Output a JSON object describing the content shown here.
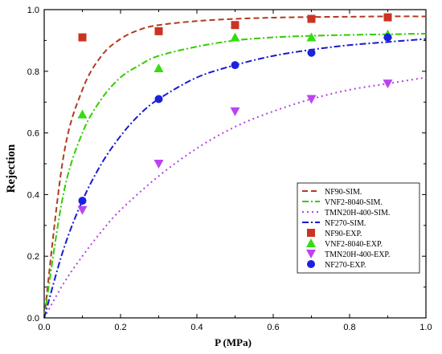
{
  "chart_data": {
    "type": "scatter",
    "xlabel": "P (MPa)",
    "ylabel": "Rejection",
    "xlim": [
      0,
      1.0
    ],
    "ylim": [
      0,
      1.0
    ],
    "x_ticks": [
      "0.0",
      "0.2",
      "0.4",
      "0.6",
      "0.8",
      "1.0"
    ],
    "y_ticks": [
      "0.0",
      "0.2",
      "0.4",
      "0.6",
      "0.8",
      "1.0"
    ],
    "grid": false,
    "legend_position": "bottom-right",
    "sim_series": [
      {
        "name": "NF90-SIM.",
        "color": "#b33a1f",
        "dash": "dash",
        "x": [
          0,
          0.05,
          0.1,
          0.15,
          0.2,
          0.25,
          0.3,
          0.4,
          0.5,
          0.6,
          0.7,
          0.8,
          0.9,
          1.0
        ],
        "y": [
          0.0,
          0.52,
          0.74,
          0.85,
          0.905,
          0.935,
          0.95,
          0.963,
          0.97,
          0.974,
          0.976,
          0.977,
          0.978,
          0.978
        ]
      },
      {
        "name": "VNF2-8040-SIM.",
        "color": "#33cc00",
        "dash": "dashdot",
        "x": [
          0,
          0.05,
          0.1,
          0.15,
          0.2,
          0.25,
          0.3,
          0.4,
          0.5,
          0.6,
          0.7,
          0.8,
          0.9,
          1.0
        ],
        "y": [
          0.0,
          0.4,
          0.6,
          0.71,
          0.78,
          0.82,
          0.85,
          0.88,
          0.9,
          0.91,
          0.915,
          0.918,
          0.92,
          0.922
        ]
      },
      {
        "name": "TMN20H-400-SIM.",
        "color": "#b044e0",
        "dash": "dot",
        "x": [
          0,
          0.05,
          0.1,
          0.15,
          0.2,
          0.3,
          0.4,
          0.5,
          0.6,
          0.7,
          0.8,
          0.9,
          1.0
        ],
        "y": [
          0.0,
          0.11,
          0.2,
          0.28,
          0.35,
          0.46,
          0.55,
          0.62,
          0.67,
          0.71,
          0.74,
          0.76,
          0.78
        ]
      },
      {
        "name": "NF270-SIM.",
        "color": "#1a1acc",
        "dash": "dashdot",
        "x": [
          0,
          0.05,
          0.1,
          0.15,
          0.2,
          0.25,
          0.3,
          0.4,
          0.5,
          0.6,
          0.7,
          0.8,
          0.9,
          1.0
        ],
        "y": [
          0.0,
          0.22,
          0.38,
          0.5,
          0.59,
          0.66,
          0.71,
          0.78,
          0.82,
          0.85,
          0.87,
          0.885,
          0.895,
          0.905
        ]
      }
    ],
    "exp_series": [
      {
        "name": "NF90-EXP.",
        "color": "#cc3322",
        "marker": "square",
        "x": [
          0.1,
          0.3,
          0.5,
          0.7,
          0.9
        ],
        "y": [
          0.91,
          0.93,
          0.95,
          0.97,
          0.975
        ]
      },
      {
        "name": "VNF2-8040-EXP.",
        "color": "#33dd11",
        "marker": "triangle-up",
        "x": [
          0.1,
          0.3,
          0.5,
          0.7,
          0.9
        ],
        "y": [
          0.66,
          0.81,
          0.91,
          0.91,
          0.92
        ]
      },
      {
        "name": "TMN20H-400-EXP.",
        "color": "#bb44ee",
        "marker": "triangle-down",
        "x": [
          0.1,
          0.3,
          0.5,
          0.7,
          0.9
        ],
        "y": [
          0.35,
          0.5,
          0.67,
          0.71,
          0.76
        ]
      },
      {
        "name": "NF270-EXP.",
        "color": "#1a22dd",
        "marker": "circle",
        "x": [
          0.1,
          0.3,
          0.5,
          0.7,
          0.9
        ],
        "y": [
          0.38,
          0.71,
          0.82,
          0.86,
          0.91
        ]
      }
    ]
  }
}
